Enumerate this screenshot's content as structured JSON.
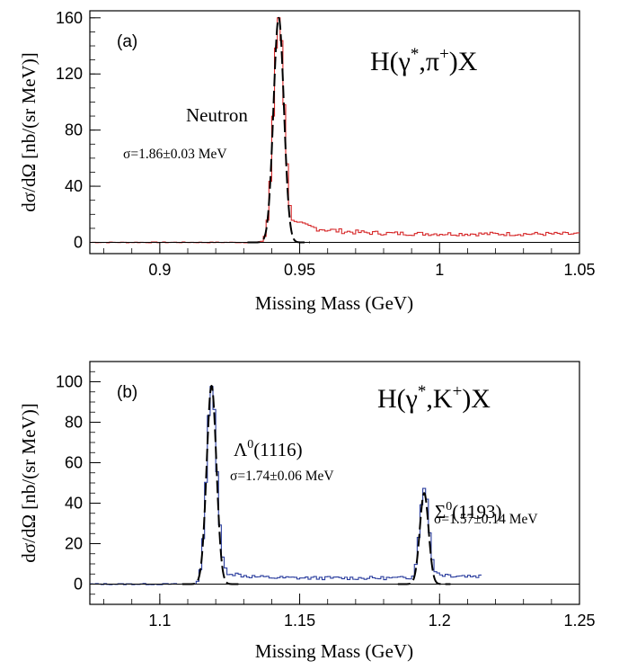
{
  "chart_data": [
    {
      "type": "histogram",
      "panel_label": "(a)",
      "reaction": {
        "main": "H(γ",
        "sup1": "*",
        "mid": ",π",
        "sup2": "+",
        "end": ")X"
      },
      "xlabel": "Missing Mass (GeV)",
      "ylabel": "dσ/dΩ [nb/(sr MeV)]",
      "xlim": [
        0.875,
        1.05
      ],
      "ylim": [
        -8,
        165
      ],
      "x_ticks": [
        0.9,
        0.95,
        1.0,
        1.05
      ],
      "x_tick_labels": [
        "0.9",
        "0.95",
        "1",
        "1.05"
      ],
      "y_ticks": [
        0,
        40,
        80,
        120,
        160
      ],
      "y_tick_labels": [
        "0",
        "40",
        "80",
        "120",
        "160"
      ],
      "histogram_color": "#d62728",
      "fit_color": "#000000",
      "peaks": [
        {
          "name": "Neutron",
          "name_sup": "",
          "name_suffix": "",
          "mass": 0.9425,
          "sigma_mev": 1.86,
          "height": 160,
          "sigma_label": "σ=1.86±0.03 MeV",
          "tail_amp": 13,
          "tail_decay": 0.012,
          "tail_base": 6
        }
      ],
      "hist_range": [
        0.875,
        1.05
      ],
      "hist_bin": 0.001,
      "baseline": 0
    },
    {
      "type": "histogram",
      "panel_label": "(b)",
      "reaction": {
        "main": "H(γ",
        "sup1": "*",
        "mid": ",K",
        "sup2": "+",
        "end": ")X"
      },
      "xlabel": "Missing Mass (GeV)",
      "ylabel": "dσ/dΩ [nb/(sr MeV)]",
      "xlim": [
        1.075,
        1.25
      ],
      "ylim": [
        -10,
        110
      ],
      "x_ticks": [
        1.1,
        1.15,
        1.2,
        1.25
      ],
      "x_tick_labels": [
        "1.1",
        "1.15",
        "1.2",
        "1.25"
      ],
      "y_ticks": [
        0,
        20,
        40,
        60,
        80,
        100
      ],
      "y_tick_labels": [
        "0",
        "20",
        "40",
        "60",
        "80",
        "100"
      ],
      "histogram_color": "#2a3d9e",
      "fit_color": "#000000",
      "peaks": [
        {
          "name": "Λ",
          "name_sup": "0",
          "name_suffix": "(1116)",
          "mass": 1.1185,
          "sigma_mev": 1.74,
          "height": 98,
          "sigma_label": "σ=1.74±0.06 MeV",
          "tail_amp": 9,
          "tail_decay": 0.006,
          "tail_base": 3
        },
        {
          "name": "Σ",
          "name_sup": "0",
          "name_suffix": "(1193)",
          "mass": 1.1945,
          "sigma_mev": 1.57,
          "height": 45,
          "sigma_label": "σ=1.57±0.14 MeV",
          "tail_amp": 5,
          "tail_decay": 0.004,
          "tail_base": 1
        }
      ],
      "hist_range": [
        1.075,
        1.215
      ],
      "hist_bin": 0.001,
      "baseline": 0
    }
  ]
}
